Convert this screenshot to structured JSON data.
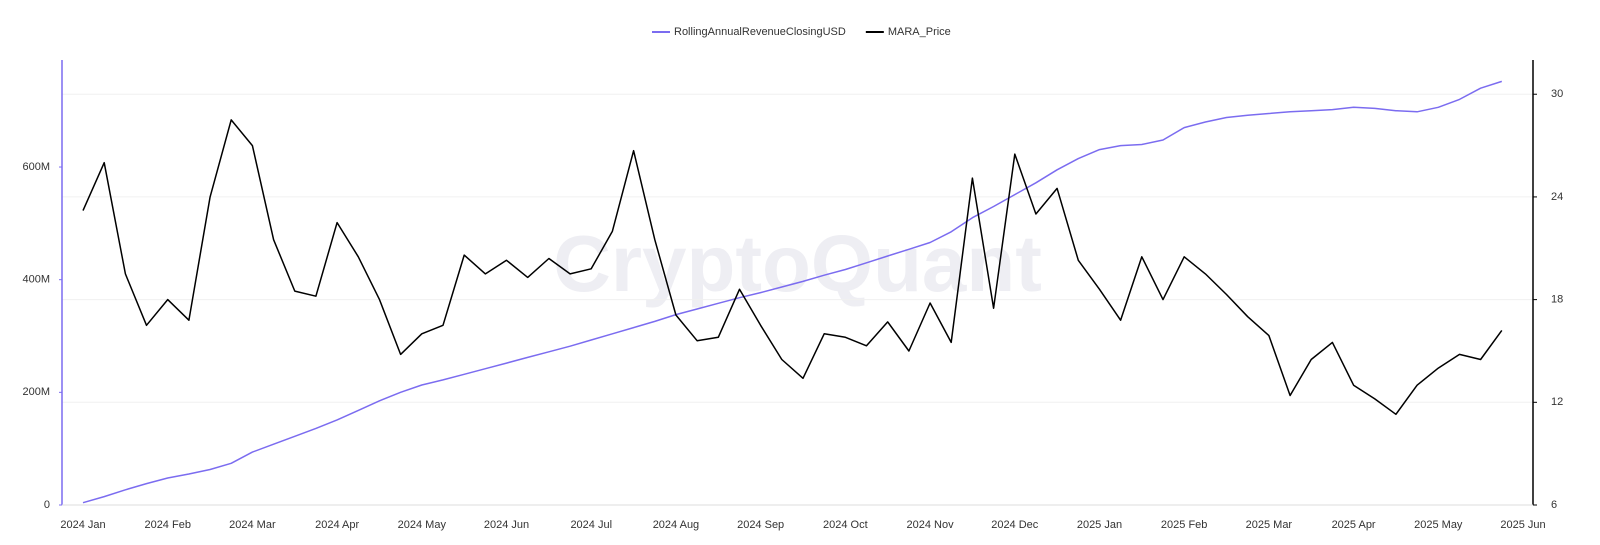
{
  "chart_data": {
    "type": "line",
    "watermark": "CryptoQuant",
    "categories": [
      "2024 Jan",
      null,
      null,
      null,
      "2024 Feb",
      null,
      null,
      null,
      "2024 Mar",
      null,
      null,
      null,
      "2024 Apr",
      null,
      null,
      null,
      "2024 May",
      null,
      null,
      null,
      "2024 Jun",
      null,
      null,
      null,
      "2024 Jul",
      null,
      null,
      null,
      "2024 Aug",
      null,
      null,
      null,
      "2024 Sep",
      null,
      null,
      null,
      "2024 Oct",
      null,
      null,
      null,
      "2024 Nov",
      null,
      null,
      null,
      "2024 Dec",
      null,
      null,
      null,
      "2025 Jan",
      null,
      null,
      null,
      "2025 Feb",
      null,
      null,
      null,
      "2025 Mar",
      null,
      null,
      null,
      "2025 Apr",
      null,
      null,
      null,
      "2025 May",
      null,
      null,
      null,
      "2025 Jun"
    ],
    "series": [
      {
        "name": "RollingAnnualRevenueClosingUSD",
        "color": "#7b6cf0",
        "axis": "y",
        "values": [
          4000000,
          15000000,
          27000000,
          38000000,
          48000000,
          55000000,
          63000000,
          74000000,
          94000000,
          108000000,
          122000000,
          136000000,
          151000000,
          168000000,
          185000000,
          200000000,
          213000000,
          222000000,
          232000000,
          242000000,
          252000000,
          262000000,
          272000000,
          282000000,
          293000000,
          304000000,
          315000000,
          326000000,
          338000000,
          348000000,
          358000000,
          368000000,
          377000000,
          387000000,
          397000000,
          408000000,
          418000000,
          430000000,
          442000000,
          454000000,
          466000000,
          485000000,
          510000000,
          530000000,
          551000000,
          572000000,
          595000000,
          615000000,
          631000000,
          638000000,
          640000000,
          648000000,
          670000000,
          680000000,
          688000000,
          692000000,
          695000000,
          698000000,
          700000000,
          702000000,
          706000000,
          704000000,
          700000000,
          698000000,
          706000000,
          720000000,
          740000000,
          752000000,
          null
        ]
      },
      {
        "name": "MARA_Price",
        "color": "#000000",
        "axis": "y2",
        "values": [
          23.2,
          26.0,
          19.5,
          16.5,
          18.0,
          16.8,
          24.0,
          28.5,
          27.0,
          21.5,
          18.5,
          18.2,
          22.5,
          20.5,
          18.0,
          14.8,
          16.0,
          16.5,
          20.6,
          19.5,
          20.3,
          19.3,
          20.4,
          19.5,
          19.8,
          22.0,
          26.7,
          21.5,
          17.1,
          15.6,
          15.8,
          18.6,
          16.5,
          14.5,
          13.4,
          16.0,
          15.8,
          15.3,
          16.7,
          15.0,
          17.8,
          15.5,
          25.1,
          17.5,
          26.5,
          23.0,
          24.5,
          20.3,
          18.6,
          16.8,
          20.5,
          18.0,
          20.5,
          19.5,
          18.3,
          17.0,
          15.9,
          12.4,
          14.5,
          15.5,
          13.0,
          12.2,
          11.3,
          13.0,
          14.0,
          14.8,
          14.5,
          16.2,
          null
        ]
      }
    ],
    "ylim": [
      0,
      790000000
    ],
    "yticks": [
      0,
      {
        "value": 200000000,
        "label": "200M"
      },
      {
        "value": 400000000,
        "label": "400M"
      },
      {
        "value": 600000000,
        "label": "600M"
      }
    ],
    "y2lim": [
      6,
      32
    ],
    "y2ticks": [
      6,
      12,
      18,
      24,
      30
    ],
    "grid": true,
    "legend": "top"
  }
}
